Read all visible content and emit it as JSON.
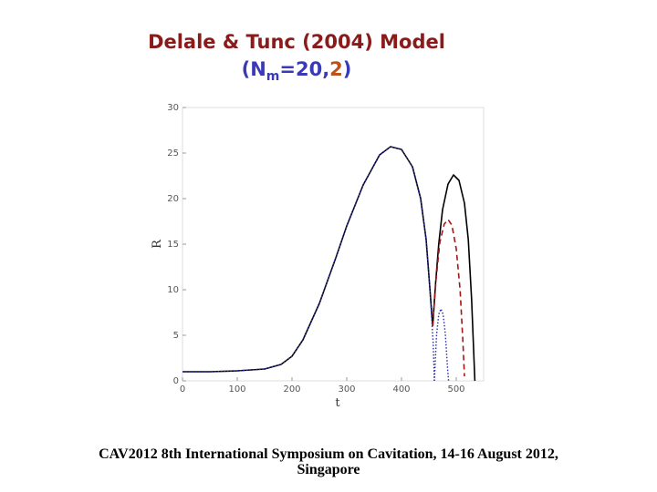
{
  "title": {
    "line1": "Delale & Tunc (2004) Model",
    "paren_open": "(",
    "n_letter": "N",
    "n_sub": "m",
    "eq_text": "=20,",
    "highlight": "2",
    "paren_close": ")"
  },
  "footer": {
    "line1": "CAV2012  8th International Symposium on Cavitation, 14-16 August 2012,",
    "line2": "Singapore"
  },
  "colors": {
    "title_line1": "#8B1A1A",
    "title_line2": "#3A3AB8",
    "title_highlight": "#C0501A",
    "series_solid": "#000000",
    "series_dashed": "#A01818",
    "series_dotted": "#2A2AB0"
  },
  "chart_data": {
    "type": "line",
    "xlabel": "t",
    "ylabel": "R",
    "xlim": [
      0,
      550
    ],
    "ylim": [
      0,
      30
    ],
    "xticks": [
      0,
      100,
      200,
      300,
      400,
      500
    ],
    "yticks": [
      0,
      5,
      10,
      15,
      20,
      25,
      30
    ],
    "grid": false,
    "series": [
      {
        "style": "solid",
        "color": "#000000",
        "segments": [
          [
            [
              0,
              1
            ],
            [
              50,
              1
            ],
            [
              100,
              1.1
            ],
            [
              150,
              1.3
            ],
            [
              180,
              1.8
            ],
            [
              200,
              2.7
            ],
            [
              220,
              4.5
            ],
            [
              250,
              8.5
            ],
            [
              280,
              13.5
            ],
            [
              300,
              17
            ],
            [
              330,
              21.5
            ],
            [
              360,
              24.8
            ],
            [
              380,
              25.7
            ],
            [
              400,
              25.4
            ],
            [
              420,
              23.5
            ],
            [
              435,
              20
            ],
            [
              445,
              15.5
            ],
            [
              452,
              10
            ],
            [
              457,
              6
            ]
          ],
          [
            [
              457,
              6
            ],
            [
              462,
              10.5
            ],
            [
              468,
              15
            ],
            [
              475,
              18.8
            ],
            [
              485,
              21.6
            ],
            [
              495,
              22.6
            ],
            [
              505,
              22
            ],
            [
              515,
              19.5
            ],
            [
              522,
              15.5
            ],
            [
              528,
              9
            ],
            [
              532,
              3
            ],
            [
              534,
              0
            ]
          ]
        ]
      },
      {
        "style": "dashed",
        "color": "#A01818",
        "segments": [
          [
            [
              457,
              6
            ],
            [
              463,
              11
            ],
            [
              470,
              15.2
            ],
            [
              478,
              17.2
            ],
            [
              485,
              17.7
            ],
            [
              492,
              17.1
            ],
            [
              500,
              14.5
            ],
            [
              507,
              10
            ],
            [
              512,
              4.5
            ],
            [
              515,
              0.5
            ]
          ]
        ]
      },
      {
        "style": "dotted",
        "color": "#2A2AB0",
        "segments": [
          [
            [
              0,
              1
            ],
            [
              50,
              1
            ],
            [
              100,
              1.1
            ],
            [
              150,
              1.3
            ],
            [
              180,
              1.8
            ],
            [
              200,
              2.7
            ],
            [
              220,
              4.5
            ],
            [
              250,
              8.5
            ],
            [
              280,
              13.5
            ],
            [
              300,
              17
            ],
            [
              330,
              21.5
            ],
            [
              360,
              24.8
            ],
            [
              380,
              25.7
            ],
            [
              400,
              25.4
            ],
            [
              420,
              23.5
            ],
            [
              435,
              20
            ],
            [
              445,
              15.5
            ],
            [
              452,
              10
            ],
            [
              458,
              4
            ],
            [
              460,
              0
            ]
          ],
          [
            [
              460,
              0
            ],
            [
              464,
              5
            ],
            [
              468,
              7.3
            ],
            [
              472,
              7.9
            ],
            [
              476,
              7.3
            ],
            [
              480,
              5.2
            ],
            [
              484,
              1.5
            ],
            [
              486,
              0
            ]
          ]
        ]
      }
    ]
  }
}
